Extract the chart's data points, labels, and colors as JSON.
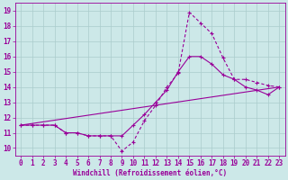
{
  "xlabel": "Windchill (Refroidissement éolien,°C)",
  "bg_color": "#cce8e8",
  "line_color": "#990099",
  "grid_color": "#aacccc",
  "xlim": [
    -0.5,
    23.5
  ],
  "ylim": [
    9.5,
    19.5
  ],
  "xticks": [
    0,
    1,
    2,
    3,
    4,
    5,
    6,
    7,
    8,
    9,
    10,
    11,
    12,
    13,
    14,
    15,
    16,
    17,
    18,
    19,
    20,
    21,
    22,
    23
  ],
  "yticks": [
    10,
    11,
    12,
    13,
    14,
    15,
    16,
    17,
    18,
    19
  ],
  "line1_x": [
    0,
    1,
    2,
    3,
    4,
    5,
    6,
    7,
    8,
    9,
    10,
    11,
    12,
    13,
    14,
    15,
    16,
    17,
    18,
    19,
    20,
    21,
    22,
    23
  ],
  "line1_y": [
    11.5,
    11.5,
    11.5,
    11.5,
    11.0,
    11.0,
    10.8,
    10.8,
    10.8,
    9.8,
    10.4,
    11.8,
    12.8,
    14.0,
    14.9,
    18.9,
    18.2,
    17.5,
    15.9,
    14.5,
    14.5,
    14.3,
    14.1,
    14.0
  ],
  "line2_x": [
    0,
    1,
    2,
    3,
    4,
    5,
    6,
    7,
    8,
    9,
    10,
    11,
    12,
    13,
    14,
    15,
    16,
    17,
    18,
    19,
    20,
    21,
    22,
    23
  ],
  "line2_y": [
    11.5,
    11.5,
    11.5,
    11.5,
    11.0,
    11.0,
    10.8,
    10.8,
    10.8,
    10.8,
    11.5,
    12.2,
    13.0,
    13.8,
    15.0,
    16.0,
    16.0,
    15.5,
    14.8,
    14.5,
    14.0,
    13.8,
    13.5,
    14.0
  ],
  "line3_x": [
    0,
    23
  ],
  "line3_y": [
    11.5,
    14.0
  ],
  "markersize": 2.0,
  "linewidth": 0.8,
  "tick_fontsize": 5.5,
  "xlabel_fontsize": 5.5
}
